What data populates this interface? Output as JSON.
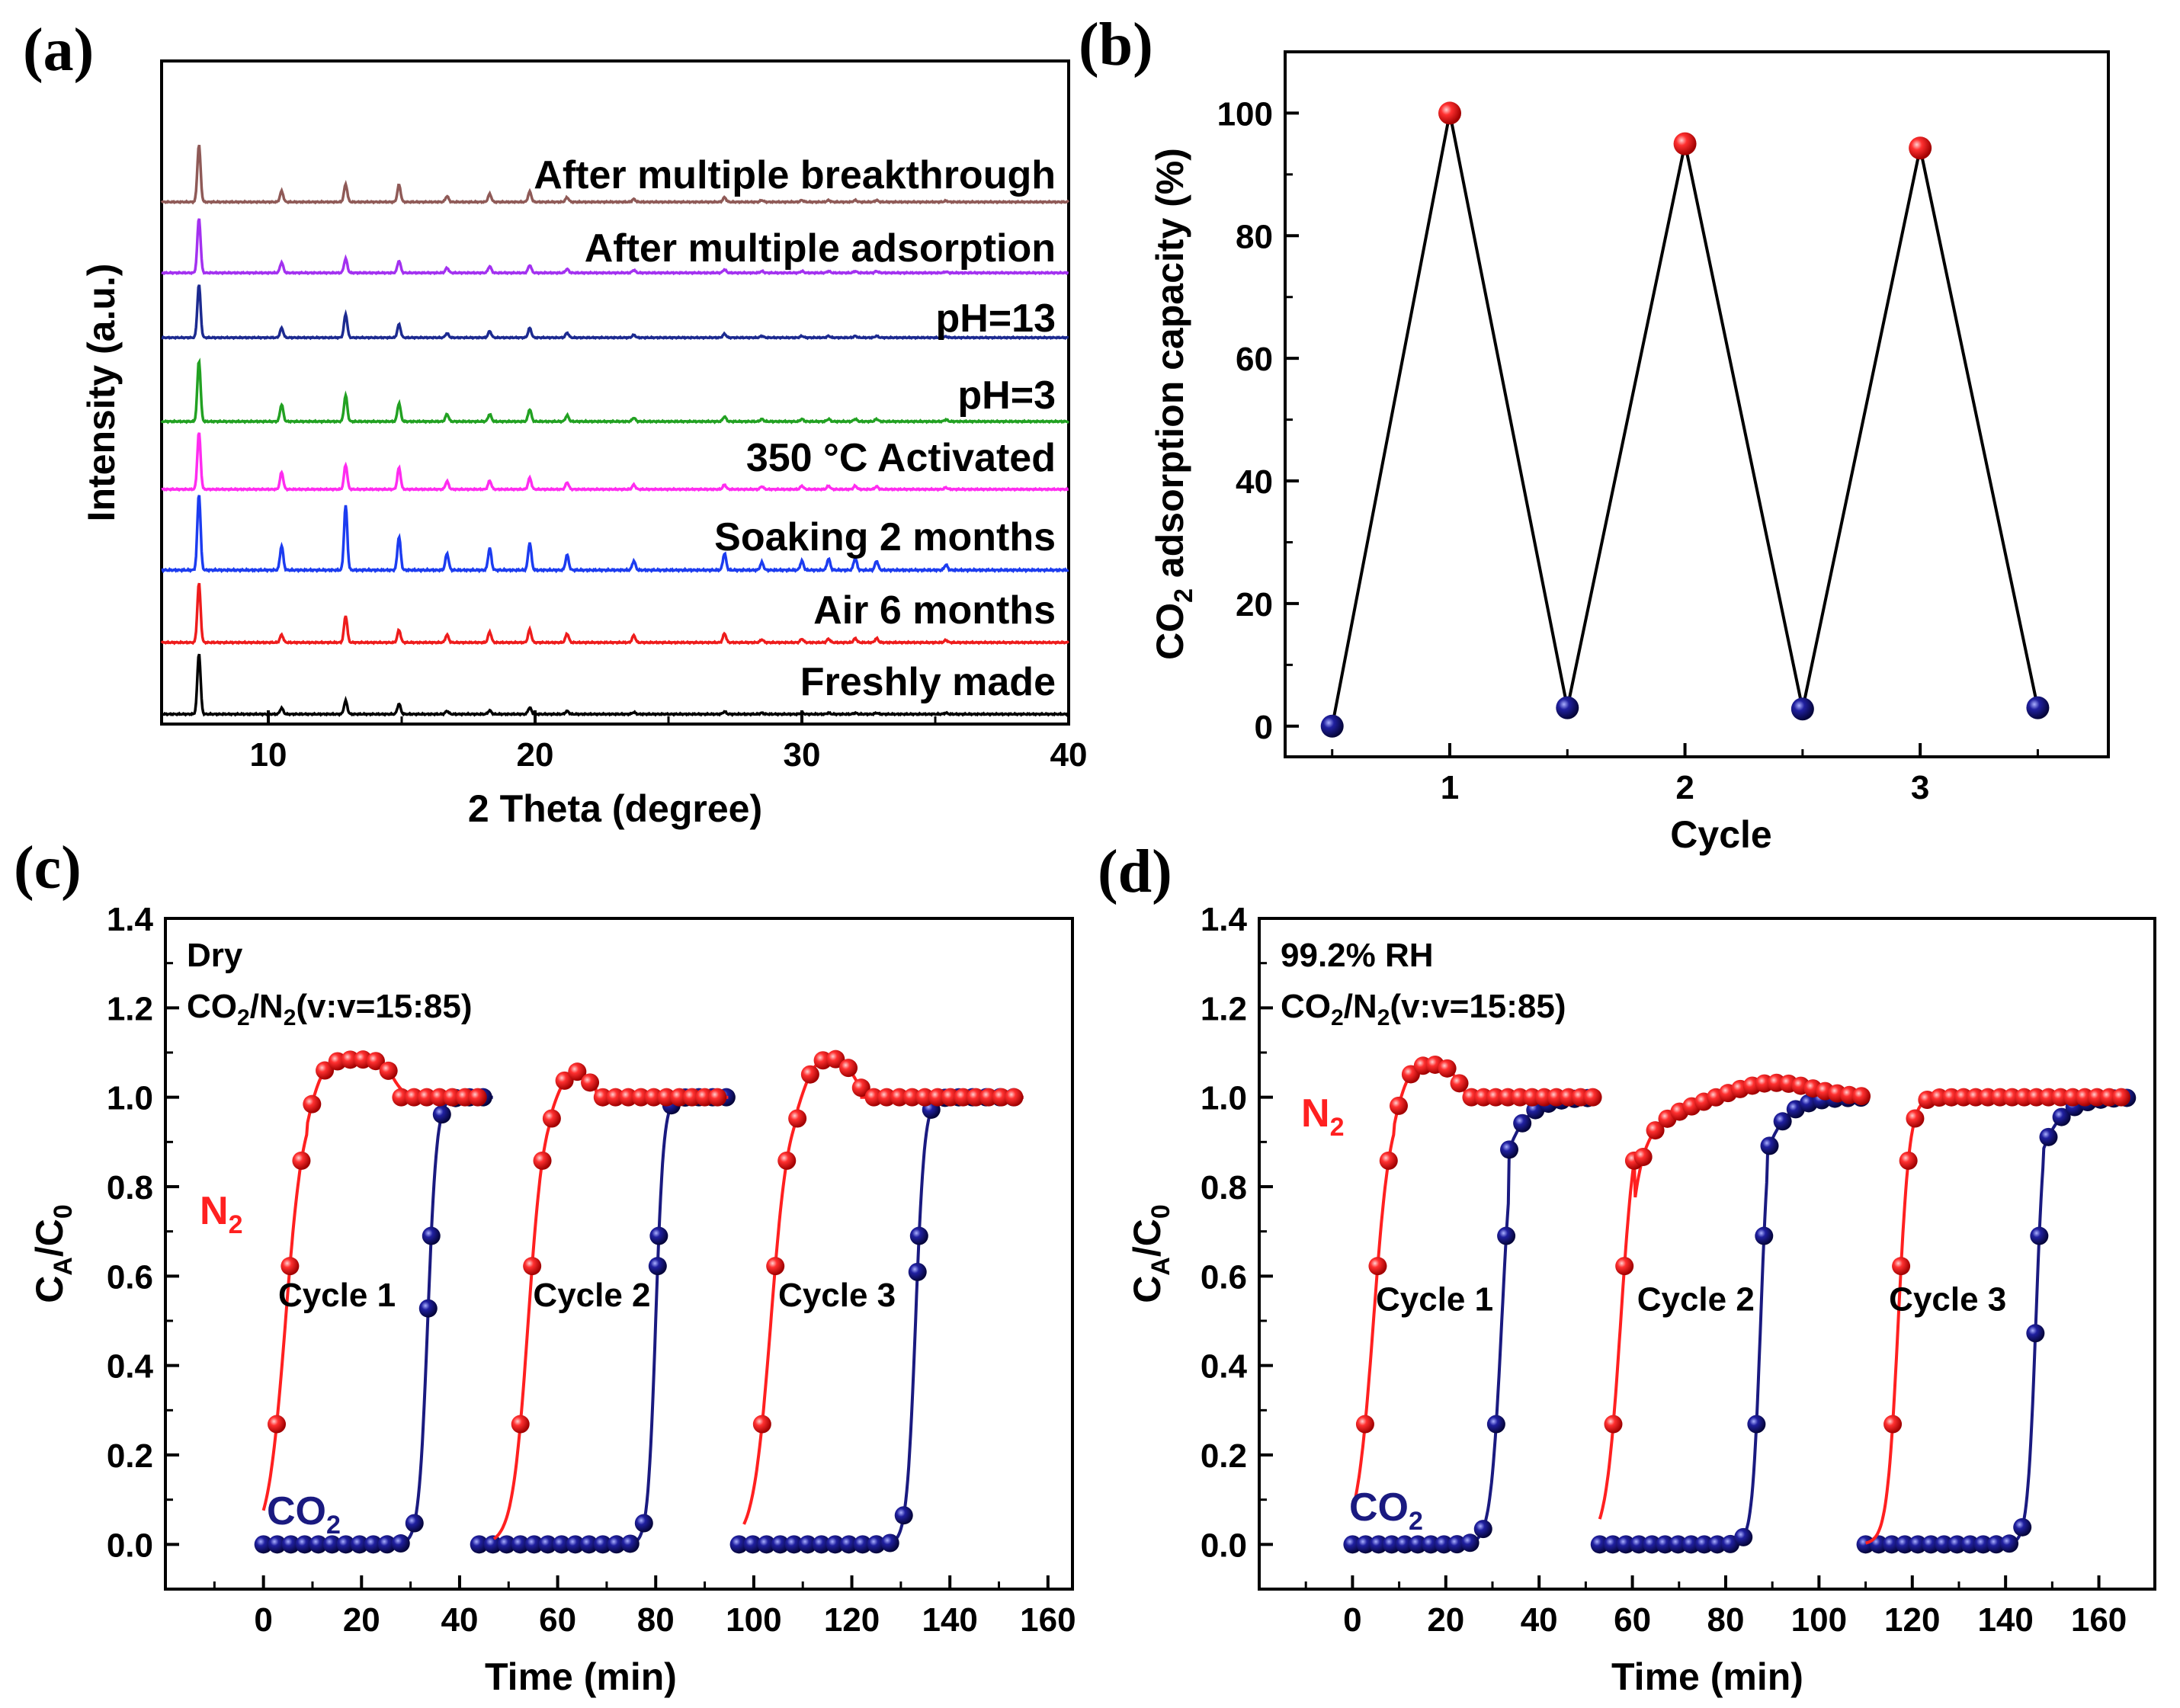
{
  "colors": {
    "red": "#ff2020",
    "navy": "#1a1a80",
    "xrd": {
      "freshly": "#000000",
      "air": "#ee1c1c",
      "soaking": "#1c3cf0",
      "activated": "#ff2cf0",
      "ph3": "#22a122",
      "ph13": "#1c2a90",
      "adsorption": "#a331f0",
      "breakthrough": "#8f5a57"
    }
  },
  "panels": {
    "a": "(a)",
    "b": "(b)",
    "c": "(c)",
    "d": "(d)"
  },
  "chart_data": [
    {
      "id": "a",
      "type": "line",
      "xlabel": "2 Theta (degree)",
      "ylabel": "Intensity (a.u.)",
      "xlim": [
        6,
        40
      ],
      "xticks": [
        10,
        20,
        30,
        40
      ],
      "peaks_2theta": [
        7.4,
        10.5,
        12.9,
        14.9,
        16.7,
        18.3,
        19.8,
        21.2,
        23.7,
        27.1,
        28.5,
        30.0,
        31.0,
        32.0,
        32.8,
        35.4
      ],
      "series": [
        {
          "name": "Freshly made",
          "color_key": "freshly",
          "offset": 0,
          "heights": [
            100,
            10,
            22,
            17,
            5,
            6,
            11,
            5,
            3,
            4,
            2,
            2,
            2,
            2,
            2,
            2
          ]
        },
        {
          "name": "Air 6 months",
          "color_key": "air",
          "offset": 1,
          "heights": [
            100,
            13,
            45,
            21,
            13,
            18,
            22,
            15,
            12,
            15,
            5,
            6,
            6,
            7,
            7,
            4
          ]
        },
        {
          "name": "Soaking 2 months",
          "color_key": "soaking",
          "offset": 2,
          "heights": [
            100,
            32,
            85,
            44,
            22,
            29,
            36,
            20,
            12,
            22,
            10,
            12,
            15,
            16,
            12,
            7
          ]
        },
        {
          "name": "350 °C Activated",
          "color_key": "activated",
          "offset": 3,
          "heights": [
            100,
            30,
            43,
            38,
            14,
            15,
            20,
            12,
            8,
            8,
            5,
            6,
            6,
            6,
            5,
            3
          ]
        },
        {
          "name": "pH=3",
          "color_key": "ph3",
          "offset": 4,
          "heights": [
            100,
            28,
            43,
            30,
            12,
            12,
            20,
            10,
            6,
            8,
            4,
            4,
            4,
            4,
            4,
            3
          ]
        },
        {
          "name": "pH=13",
          "color_key": "ph13",
          "offset": 5,
          "heights": [
            100,
            18,
            44,
            25,
            8,
            12,
            18,
            9,
            5,
            7,
            3,
            3,
            3,
            3,
            3,
            2
          ]
        },
        {
          "name": "After multiple adsorption",
          "color_key": "adsorption",
          "offset": 6,
          "heights": [
            100,
            19,
            26,
            22,
            9,
            12,
            14,
            7,
            5,
            6,
            3,
            3,
            3,
            3,
            3,
            2
          ]
        },
        {
          "name": "After multiple breakthrough",
          "color_key": "breakthrough",
          "offset": 7,
          "heights": [
            100,
            19,
            31,
            30,
            10,
            14,
            18,
            8,
            5,
            8,
            3,
            3,
            3,
            3,
            3,
            2
          ]
        }
      ]
    },
    {
      "id": "b",
      "type": "line",
      "xlabel": "Cycle",
      "ylabel_main": "CO",
      "ylabel_sub": "2",
      "ylabel_rest": " adsorption capacity (%)",
      "xlim": [
        0.3,
        3.8
      ],
      "ylim": [
        -5,
        110
      ],
      "xticks": [
        1,
        2,
        3
      ],
      "yticks": [
        0,
        20,
        40,
        60,
        80,
        100
      ],
      "points": [
        {
          "x": 0.5,
          "y": 0,
          "color_key": "navy"
        },
        {
          "x": 1,
          "y": 100,
          "color_key": "red"
        },
        {
          "x": 1.5,
          "y": 3,
          "color_key": "navy"
        },
        {
          "x": 2,
          "y": 95,
          "color_key": "red"
        },
        {
          "x": 2.5,
          "y": 2.8,
          "color_key": "navy"
        },
        {
          "x": 3,
          "y": 94.3,
          "color_key": "red"
        },
        {
          "x": 3.5,
          "y": 3,
          "color_key": "navy"
        }
      ]
    },
    {
      "id": "c",
      "type": "line",
      "xlabel": "Time (min)",
      "ylabel": {
        "main": "C",
        "sub1": "A",
        "mid": "/C",
        "sub2": "0"
      },
      "xlim": [
        -20,
        165
      ],
      "ylim": [
        -0.1,
        1.4
      ],
      "xticks": [
        0,
        20,
        40,
        60,
        80,
        100,
        120,
        140,
        160
      ],
      "yticks": [
        "0.0",
        "0.2",
        "0.4",
        "0.6",
        "0.8",
        "1.0",
        "1.2",
        "1.4"
      ],
      "annotation": {
        "line1": "Dry",
        "line2_main": "CO",
        "line2_sub1": "2",
        "line2_mid": "/N",
        "line2_sub2": "2",
        "line2_rest": "(v:v=15:85)"
      },
      "labels": {
        "n2_main": "N",
        "n2_sub": "2",
        "co2_main": "CO",
        "co2_sub": "2"
      },
      "cycle_labels": [
        {
          "text": "Cycle 1",
          "x": 3,
          "y": 0.56
        },
        {
          "text": "Cycle 2",
          "x": 55,
          "y": 0.56
        },
        {
          "text": "Cycle 3",
          "x": 105,
          "y": 0.56
        }
      ],
      "n2_cycles": [
        {
          "start": 0,
          "bt": 4.5,
          "rise": 1.8,
          "ov": 0.085,
          "ovStart": 9,
          "ovEnd": 28,
          "plateau": 1.0,
          "end": 44,
          "markerStep": 2.6,
          "color_key": "red"
        },
        {
          "start": 47,
          "bt": 54,
          "rise": 1.6,
          "ov": 0.07,
          "ovStart": 59,
          "ovEnd": 68,
          "plateau": 1.0,
          "end": 95,
          "markerStep": 2.6,
          "color_key": "red"
        },
        {
          "start": 98,
          "bt": 103.5,
          "rise": 1.8,
          "ov": 0.09,
          "ovStart": 109,
          "ovEnd": 122,
          "plateau": 1.0,
          "end": 155,
          "markerStep": 2.6,
          "color_key": "red"
        }
      ],
      "co2_cycles": [
        {
          "start": 0,
          "bt": 33.5,
          "rise": 0.9,
          "end": 47,
          "markerStep": 2.8,
          "color_key": "navy"
        },
        {
          "start": 44,
          "bt": 80,
          "rise": 0.8,
          "end": 96,
          "markerStep": 2.8,
          "color_key": "navy"
        },
        {
          "start": 97,
          "bt": 133,
          "rise": 0.9,
          "end": 155,
          "markerStep": 2.8,
          "color_key": "navy"
        }
      ]
    },
    {
      "id": "d",
      "type": "line",
      "xlabel": "Time (min)",
      "ylabel": {
        "main": "C",
        "sub1": "A",
        "mid": "/C",
        "sub2": "0"
      },
      "xlim": [
        -20,
        172
      ],
      "ylim": [
        -0.1,
        1.4
      ],
      "xticks": [
        0,
        20,
        40,
        60,
        80,
        100,
        120,
        140,
        160
      ],
      "yticks": [
        "0.0",
        "0.2",
        "0.4",
        "0.6",
        "0.8",
        "1.0",
        "1.2",
        "1.4"
      ],
      "annotation": {
        "line1": "99.2% RH",
        "line2_main": "CO",
        "line2_sub1": "2",
        "line2_mid": "/N",
        "line2_sub2": "2",
        "line2_rest": "(v:v=15:85)"
      },
      "labels": {
        "n2_main": "N",
        "n2_sub": "2",
        "co2_main": "CO",
        "co2_sub": "2"
      },
      "cycle_labels": [
        {
          "text": "Cycle 1",
          "x": 5,
          "y": 0.55
        },
        {
          "text": "Cycle 2",
          "x": 61,
          "y": 0.55
        },
        {
          "text": "Cycle 3",
          "x": 115,
          "y": 0.55
        }
      ],
      "n2_cycles": [
        {
          "start": 0,
          "bt": 4.5,
          "rise": 1.8,
          "ov": 0.075,
          "ovStart": 9,
          "ovEnd": 24,
          "plateau": 1.0,
          "end": 53,
          "markerStep": 2.6,
          "color_key": "red"
        },
        {
          "start": 53,
          "bt": 57.5,
          "rise": 1.6,
          "ov": 0.035,
          "ovStart": 80,
          "ovEnd": 100,
          "plateau": 1.0,
          "end": 110,
          "markerStep": 2.6,
          "color_key": "red",
          "slow": true
        },
        {
          "start": 110,
          "bt": 117,
          "rise": 1.2,
          "ov": 0.0,
          "ovStart": 120,
          "ovEnd": 121,
          "plateau": 1.0,
          "end": 166,
          "markerStep": 2.6,
          "color_key": "red"
        }
      ],
      "co2_cycles": [
        {
          "start": 0,
          "bt": 32,
          "rise": 1.2,
          "end": 53,
          "markerStep": 2.8,
          "color_key": "navy",
          "tail": true
        },
        {
          "start": 53,
          "bt": 87.5,
          "rise": 0.9,
          "end": 110,
          "markerStep": 2.8,
          "color_key": "navy",
          "tail": true
        },
        {
          "start": 110,
          "bt": 146.5,
          "rise": 0.9,
          "end": 166,
          "markerStep": 2.8,
          "color_key": "navy",
          "tail": true
        }
      ]
    }
  ]
}
